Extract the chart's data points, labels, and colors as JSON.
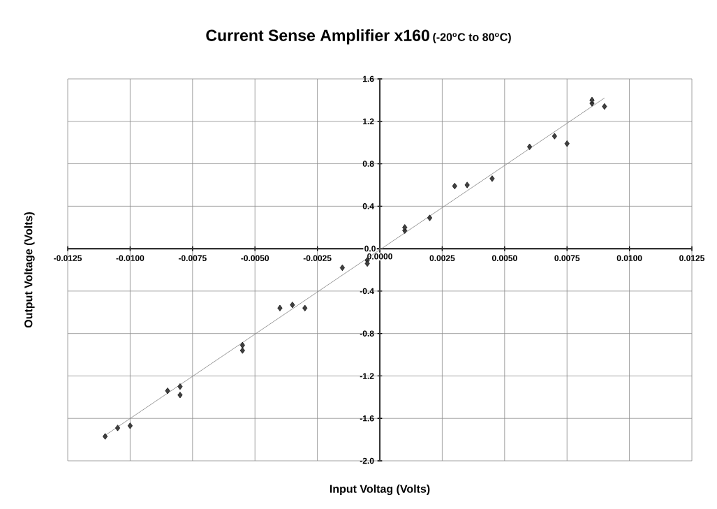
{
  "chart_data": {
    "type": "scatter",
    "title": "Current Sense Amplifier x160",
    "subtitle": "(-20$^{o}$C to 80$^{o}$C)",
    "xlabel": "Input Voltag   (Volts)",
    "ylabel": "Output Voltage (Volts)",
    "xlim": [
      -0.0125,
      0.0125
    ],
    "ylim": [
      -2.0,
      1.6
    ],
    "xticks": [
      {
        "value": -0.0125,
        "label": "-0.0125"
      },
      {
        "value": -0.01,
        "label": "-0.0100"
      },
      {
        "value": -0.0075,
        "label": "-0.0075"
      },
      {
        "value": -0.005,
        "label": "-0.0050"
      },
      {
        "value": -0.0025,
        "label": "-0.0025"
      },
      {
        "value": 0,
        "label": "0.0000"
      },
      {
        "value": 0.0025,
        "label": "0.0025"
      },
      {
        "value": 0.005,
        "label": "0.0050"
      },
      {
        "value": 0.0075,
        "label": "0.0075"
      },
      {
        "value": 0.01,
        "label": "0.0100"
      },
      {
        "value": 0.0125,
        "label": "0.0125"
      }
    ],
    "yticks": [
      {
        "value": -2.0,
        "label": "-2.0"
      },
      {
        "value": -1.6,
        "label": "-1.6"
      },
      {
        "value": -1.2,
        "label": "-1.2"
      },
      {
        "value": -0.8,
        "label": "-0.8"
      },
      {
        "value": -0.4,
        "label": "-0.4"
      },
      {
        "value": 0,
        "label": "0.0"
      },
      {
        "value": 0.4,
        "label": "0.4"
      },
      {
        "value": 0.8,
        "label": "0.8"
      },
      {
        "value": 1.2,
        "label": "1.2"
      },
      {
        "value": 1.6,
        "label": "1.6"
      }
    ],
    "grid": true,
    "series": [
      {
        "color": "#404040",
        "marker": "diamond",
        "x": [
          -0.011,
          -0.0105,
          -0.01,
          -0.0085,
          -0.008,
          -0.008,
          -0.0055,
          -0.0055,
          -0.004,
          -0.0035,
          -0.003,
          -0.0015,
          -0.0005,
          -0.0005,
          0.001,
          0.001,
          0.002,
          0.003,
          0.0035,
          0.0045,
          0.006,
          0.007,
          0.0075,
          0.0085,
          0.0085,
          0.009
        ],
        "values": [
          -1.77,
          -1.69,
          -1.67,
          -1.34,
          -1.3,
          -1.38,
          -0.91,
          -0.96,
          -0.56,
          -0.53,
          -0.56,
          -0.18,
          -0.11,
          -0.14,
          0.17,
          0.2,
          0.29,
          0.59,
          0.6,
          0.66,
          0.96,
          1.06,
          0.99,
          1.37,
          1.4,
          1.34
        ]
      },
      {
        "type": "line",
        "color": "#808080",
        "marker": "none",
        "line_style": "solid",
        "x": [
          -0.011,
          0.009
        ],
        "values": [
          -1.76,
          1.42
        ]
      }
    ]
  }
}
